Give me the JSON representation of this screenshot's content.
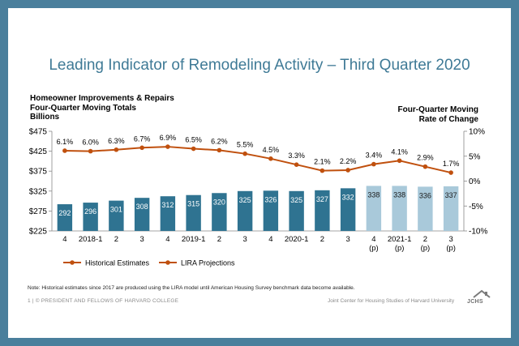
{
  "slide": {
    "title": "Leading Indicator of Remodeling Activity – Third Quarter 2020",
    "left_axis_title_1": "Homeowner Improvements & Repairs",
    "left_axis_title_2": "Four-Quarter Moving Totals",
    "left_axis_title_3": "Billions",
    "right_axis_title_1": "Four-Quarter Moving",
    "right_axis_title_2": "Rate of Change",
    "note": "Note: Historical estimates since 2017 are produced using the LIRA model until American Housing Survey benchmark data become available.",
    "copyright": "1 | © PRESIDENT AND FELLOWS OF HARVARD COLLEGE",
    "org": "Joint Center for Housing Studies of Harvard University",
    "logo_text": "JCHS"
  },
  "colors": {
    "frame": "#4a7f9c",
    "title": "#3f7a96",
    "bar_historical": "#2f7391",
    "bar_projection": "#a9c9da",
    "line": "#c0500e"
  },
  "chart_data": {
    "type": "bar",
    "categories": [
      "4",
      "2018-1",
      "2",
      "3",
      "4",
      "2019-1",
      "2",
      "3",
      "4",
      "2020-1",
      "2",
      "3",
      "4\n(p)",
      "2021-1\n(p)",
      "2\n(p)",
      "3\n(p)"
    ],
    "series": [
      {
        "name": "Historical Estimates",
        "type": "bar",
        "axis": "left",
        "values": [
          292,
          296,
          301,
          308,
          312,
          315,
          320,
          325,
          326,
          325,
          327,
          332,
          338,
          338,
          336,
          337
        ],
        "labels": [
          "292",
          "296",
          "301",
          "308",
          "312",
          "315",
          "320",
          "325",
          "326",
          "325",
          "327",
          "332",
          "338",
          "338",
          "336",
          "337"
        ],
        "projection_from_index": 12
      },
      {
        "name": "LIRA Projections",
        "type": "line",
        "axis": "right",
        "values": [
          6.1,
          6.0,
          6.3,
          6.7,
          6.9,
          6.5,
          6.2,
          5.5,
          4.5,
          3.3,
          2.1,
          2.2,
          3.4,
          4.1,
          2.9,
          1.7
        ],
        "labels": [
          "6.1%",
          "6.0%",
          "6.3%",
          "6.7%",
          "6.9%",
          "6.5%",
          "6.2%",
          "5.5%",
          "4.5%",
          "3.3%",
          "2.1%",
          "2.2%",
          "3.4%",
          "4.1%",
          "2.9%",
          "1.7%"
        ]
      }
    ],
    "y_left": {
      "min": 225,
      "max": 475,
      "ticks": [
        "$225",
        "$275",
        "$325",
        "$375",
        "$425",
        "$475"
      ]
    },
    "y_right": {
      "min": -10,
      "max": 10,
      "ticks": [
        "-10%",
        "-5%",
        "0%",
        "5%",
        "10%"
      ]
    },
    "legend": {
      "position": "bottom-left",
      "items": [
        "Historical Estimates",
        "LIRA Projections"
      ]
    }
  }
}
